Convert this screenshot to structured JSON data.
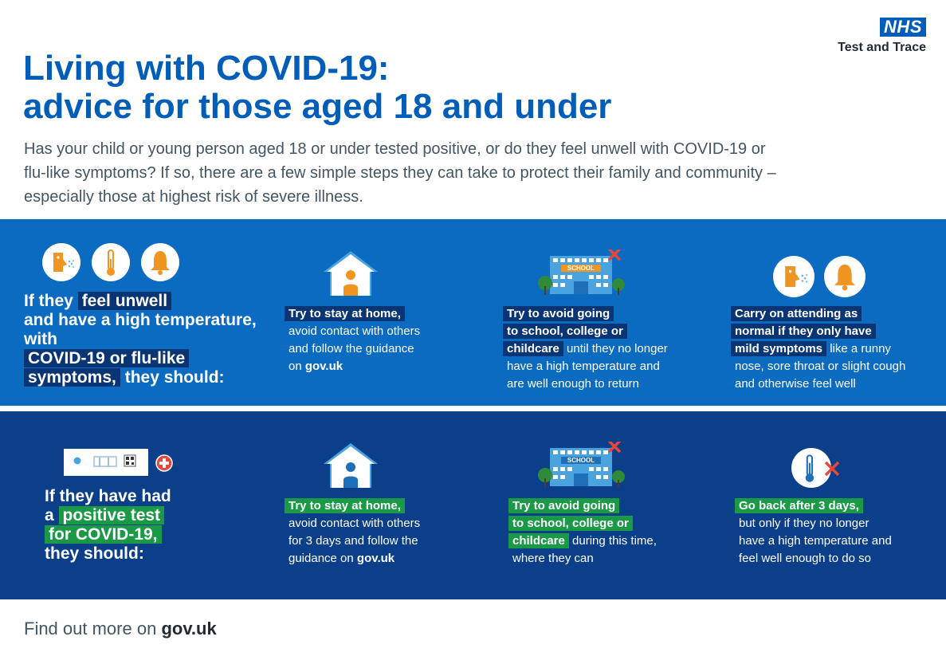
{
  "logo": {
    "nhs": "NHS",
    "subtitle": "Test and Trace"
  },
  "title": {
    "line1": "Living with COVID-19:",
    "line2": "advice for those aged 18 and under"
  },
  "intro": "Has your child or young person aged 18 or under tested positive, or do they feel unwell with COVID-19 or flu-like symptoms? If so, there are a few simple steps they can take to protect their family and community – especially those at highest risk of severe illness.",
  "section1": {
    "lead": {
      "p1": "If they ",
      "h1": "feel unwell",
      "p2": "and have a high temperature, with",
      "h2": "COVID-19 or flu-like",
      "h3": "symptoms,",
      "p3": " they should:"
    },
    "col1": {
      "bold": "Try to stay at home,",
      "l1": "avoid contact with others",
      "l2": "and follow the guidance",
      "l3": "on ",
      "link": "gov.uk"
    },
    "col2": {
      "b1": "Try to avoid going",
      "b2": "to school, college or",
      "b3": "childcare",
      "t1": " until they no longer",
      "t2": "have a high temperature and",
      "t3": "are well enough to return",
      "sign": "SCHOOL"
    },
    "col3": {
      "b1": "Carry on attending as",
      "b2": "normal if they only have",
      "b3": "mild symptoms",
      "t1": " like a runny",
      "t2": "nose, sore throat or slight cough",
      "t3": "and otherwise feel well"
    }
  },
  "section2": {
    "lead": {
      "p1": "If they have had",
      "p2": "a ",
      "h1": "positive test",
      "h2": "for COVID-19,",
      "p3": "they should:"
    },
    "col1": {
      "bold": "Try to stay at home,",
      "l1": "avoid contact with others",
      "l2": "for 3 days and follow the",
      "l3": "guidance on ",
      "link": "gov.uk"
    },
    "col2": {
      "b1": "Try to avoid going",
      "b2": "to school, college or",
      "b3": "childcare",
      "t1": " during this time,",
      "t2": "where they can",
      "sign": "SCHOOL"
    },
    "col3": {
      "b1": "Go back after 3 days,",
      "t1": "but only if they no longer",
      "t2": "have a high temperature and",
      "t3": "feel well enough to do so"
    }
  },
  "footer": {
    "text": "Find out more on ",
    "link": "gov.uk"
  },
  "colors": {
    "nhs_blue": "#005eb8",
    "band_light": "#0b6bc0",
    "band_dark": "#0b3f8a",
    "highlight_green": "#1a9a46",
    "icon_orange": "#f0951f",
    "cross_red": "#e5473a"
  },
  "icons": [
    "nose-spray-icon",
    "thermometer-icon",
    "bell-icon",
    "house-icon",
    "school-icon",
    "cross-icon",
    "lateral-flow-test-icon",
    "plus-icon"
  ]
}
